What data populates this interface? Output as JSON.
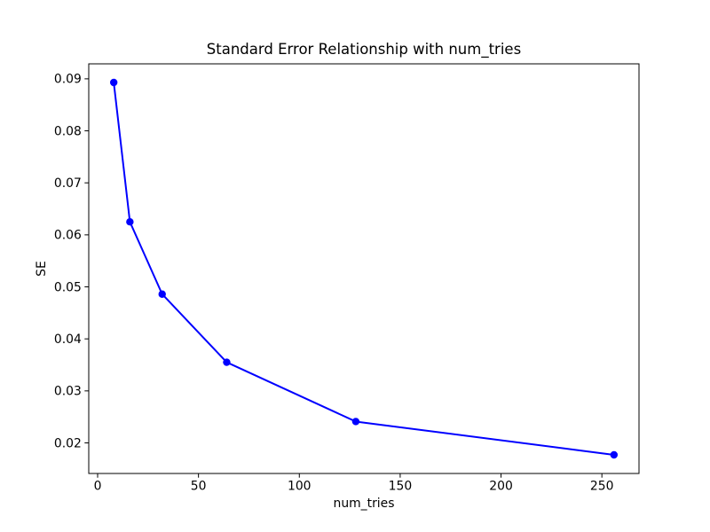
{
  "chart_data": {
    "type": "line",
    "title": "Standard Error Relationship with num_tries",
    "xlabel": "num_tries",
    "ylabel": "SE",
    "series": [
      {
        "name": "SE",
        "x": [
          8,
          16,
          32,
          64,
          128,
          256
        ],
        "y": [
          0.0893,
          0.0625,
          0.0486,
          0.0355,
          0.0241,
          0.0177
        ],
        "color": "#0000ff",
        "marker": "circle",
        "line_width": 2,
        "marker_radius": 4.2
      }
    ],
    "xlim": [
      -4.4,
      268.4
    ],
    "ylim": [
      0.01412,
      0.09288
    ],
    "xticks": [
      0,
      50,
      100,
      150,
      200,
      250
    ],
    "yticks": [
      0.02,
      0.03,
      0.04,
      0.05,
      0.06,
      0.07,
      0.08,
      0.09
    ],
    "ytick_decimals": 2,
    "grid": false,
    "legend_position": "none",
    "axis_color": "#000000",
    "background_color": "#ffffff"
  }
}
